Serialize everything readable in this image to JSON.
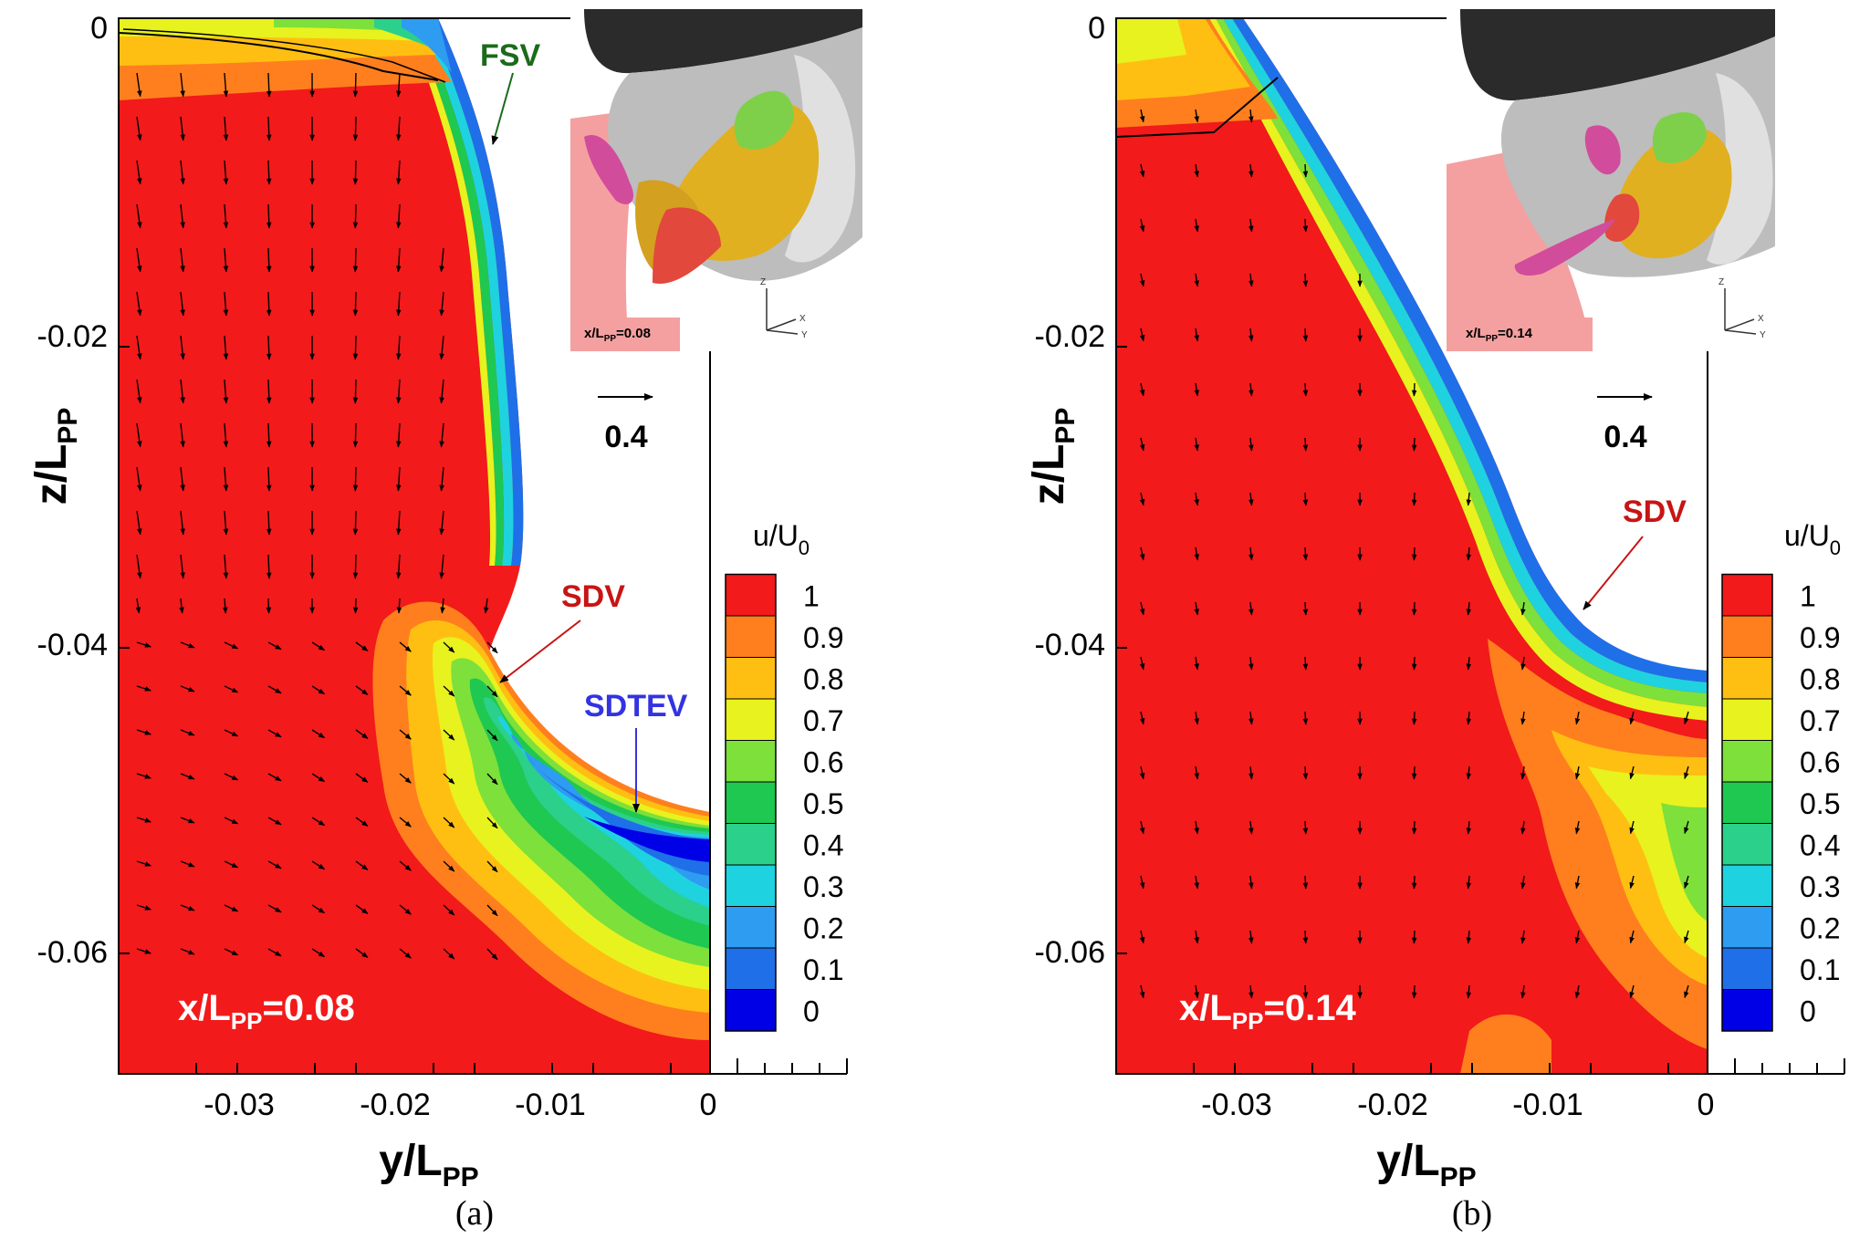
{
  "chart_data": [
    {
      "type": "contour",
      "panel_label": "(a)",
      "station_label": "x/L_PP=0.08",
      "station": {
        "prefix": "x/L",
        "sub": "PP",
        "suffix": "=0.08"
      },
      "xlabel": {
        "main": "y/L",
        "sub": "PP"
      },
      "ylabel": {
        "main": "z/L",
        "sub": "PP"
      },
      "xlim": [
        -0.038,
        0.009
      ],
      "ylim": [
        -0.068,
        0.0
      ],
      "xticks": [
        "-0.03",
        "-0.02",
        "-0.01",
        "0"
      ],
      "yticks": [
        "0",
        "-0.02",
        "-0.04",
        "-0.06"
      ],
      "colorbar": {
        "title": "u/U",
        "title_sub": "0",
        "levels": [
          "0",
          "0.1",
          "0.2",
          "0.3",
          "0.4",
          "0.5",
          "0.6",
          "0.7",
          "0.8",
          "0.9",
          "1"
        ]
      },
      "reference_vector": {
        "value": "0.4"
      },
      "annotations": [
        {
          "text": "FSV",
          "color": "#1a6b1a"
        },
        {
          "text": "SDV",
          "color": "#c81414"
        },
        {
          "text": "SDTEV",
          "color": "#3333e0"
        }
      ],
      "inset": {
        "label": {
          "prefix": "x/L",
          "sub": "PP",
          "suffix": "=0.08"
        },
        "axes": [
          "Z",
          "X",
          "Y"
        ]
      }
    },
    {
      "type": "contour",
      "panel_label": "(b)",
      "station_label": "x/L_PP=0.14",
      "station": {
        "prefix": "x/L",
        "sub": "PP",
        "suffix": "=0.14"
      },
      "xlabel": {
        "main": "y/L",
        "sub": "PP"
      },
      "ylabel": {
        "main": "z/L",
        "sub": "PP"
      },
      "xlim": [
        -0.038,
        0.009
      ],
      "ylim": [
        -0.068,
        0.0
      ],
      "xticks": [
        "-0.03",
        "-0.02",
        "-0.01",
        "0"
      ],
      "yticks": [
        "0",
        "-0.02",
        "-0.04",
        "-0.06"
      ],
      "colorbar": {
        "title": "u/U",
        "title_sub": "0",
        "levels": [
          "0",
          "0.1",
          "0.2",
          "0.3",
          "0.4",
          "0.5",
          "0.6",
          "0.7",
          "0.8",
          "0.9",
          "1"
        ]
      },
      "reference_vector": {
        "value": "0.4"
      },
      "annotations": [
        {
          "text": "SDV",
          "color": "#c81414"
        }
      ],
      "inset": {
        "label": {
          "prefix": "x/L",
          "sub": "PP",
          "suffix": "=0.14"
        },
        "axes": [
          "Z",
          "X",
          "Y"
        ]
      }
    }
  ],
  "colormap": [
    "#0000e6",
    "#1f6fe8",
    "#2e9cf0",
    "#1fd2e0",
    "#2bd08a",
    "#1fc850",
    "#7ee03a",
    "#e8f21e",
    "#ffbf12",
    "#ff7f1e",
    "#f21a1a"
  ]
}
